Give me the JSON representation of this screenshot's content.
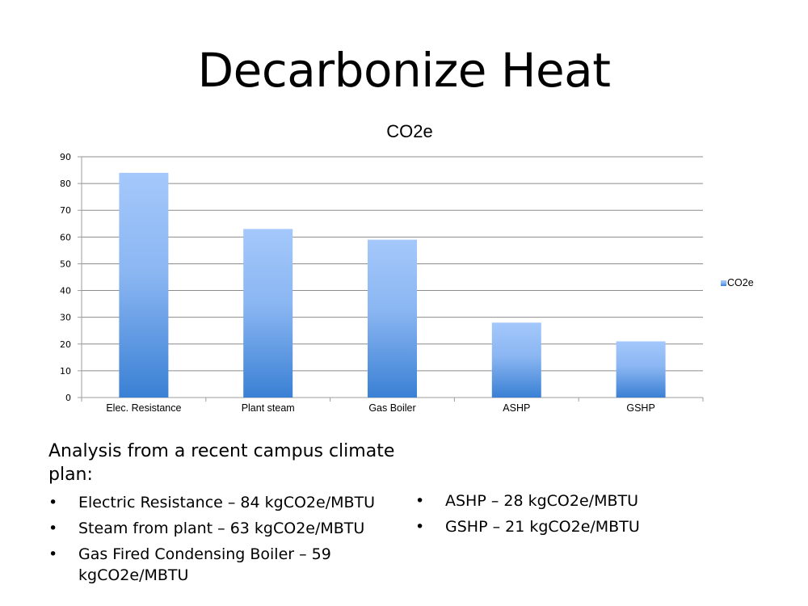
{
  "slide": {
    "title": "Decarbonize Heat",
    "intro": "Analysis from a recent campus climate plan:",
    "bullets_left": [
      "Electric Resistance – 84 kgCO2e/MBTU",
      "Steam from plant – 63 kgCO2e/MBTU",
      "Gas Fired Condensing Boiler – 59 kgCO2e/MBTU"
    ],
    "bullets_right": [
      "ASHP – 28 kgCO2e/MBTU",
      "GSHP – 21 kgCO2e/MBTU"
    ]
  },
  "chart_data": {
    "type": "bar",
    "title": "CO2e",
    "categories": [
      "Elec. Resistance",
      "Plant steam",
      "Gas Boiler",
      "ASHP",
      "GSHP"
    ],
    "series": [
      {
        "name": "CO2e",
        "values": [
          84,
          63,
          59,
          28,
          21
        ]
      }
    ],
    "ylim": [
      0,
      90
    ],
    "yticks": [
      0,
      10,
      20,
      30,
      40,
      50,
      60,
      70,
      80,
      90
    ],
    "grid": true,
    "legend": "right",
    "colors": {
      "bar_top": "#a4c8fb",
      "bar_bottom": "#3a80d4",
      "grid": "#8c8c8c",
      "axis": "#9c9c9c"
    }
  }
}
